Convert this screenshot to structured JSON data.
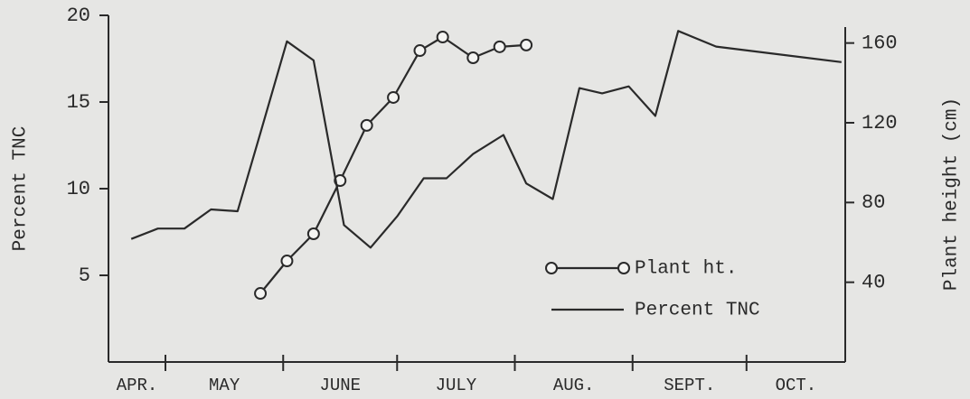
{
  "chart_data": {
    "type": "line",
    "ylabel": "Percent TNC",
    "y2label": "Plant height (cm)",
    "categories": [
      "APR.",
      "MAY",
      "JUNE",
      "JULY",
      "AUG.",
      "SEPT.",
      "OCT."
    ],
    "xlim": [
      15,
      209
    ],
    "xticks": [
      30,
      61,
      91,
      122,
      153,
      183
    ],
    "ylim": [
      0,
      20
    ],
    "yticks": [
      5,
      10,
      15,
      20
    ],
    "y2lim": [
      0,
      168
    ],
    "y2ticks": [
      40,
      80,
      120,
      160
    ],
    "legend": "lower right",
    "series": [
      {
        "name": "Plant ht.",
        "color": "#2a2a2a",
        "axis": "y2",
        "marker": "circle",
        "x": [
          55,
          62,
          69,
          76,
          83,
          90,
          97,
          103,
          111,
          118,
          125
        ],
        "values": [
          34.4,
          50.7,
          64.3,
          91.0,
          118.7,
          132.7,
          156.2,
          163.0,
          152.6,
          158.1,
          159.0
        ]
      },
      {
        "name": "Percent TNC",
        "color": "#2a2a2a",
        "x": [
          21,
          28,
          35,
          42,
          49,
          55,
          62,
          69,
          77,
          84,
          91,
          98,
          104,
          111,
          119,
          125,
          132,
          139,
          145,
          152,
          159,
          165,
          175,
          208
        ],
        "values": [
          7.1,
          7.7,
          7.7,
          8.8,
          8.7,
          13.2,
          18.5,
          17.4,
          7.9,
          6.6,
          8.4,
          10.6,
          10.6,
          12.0,
          13.1,
          10.3,
          9.4,
          15.8,
          15.5,
          15.9,
          14.2,
          19.1,
          18.2,
          17.3
        ]
      }
    ]
  }
}
